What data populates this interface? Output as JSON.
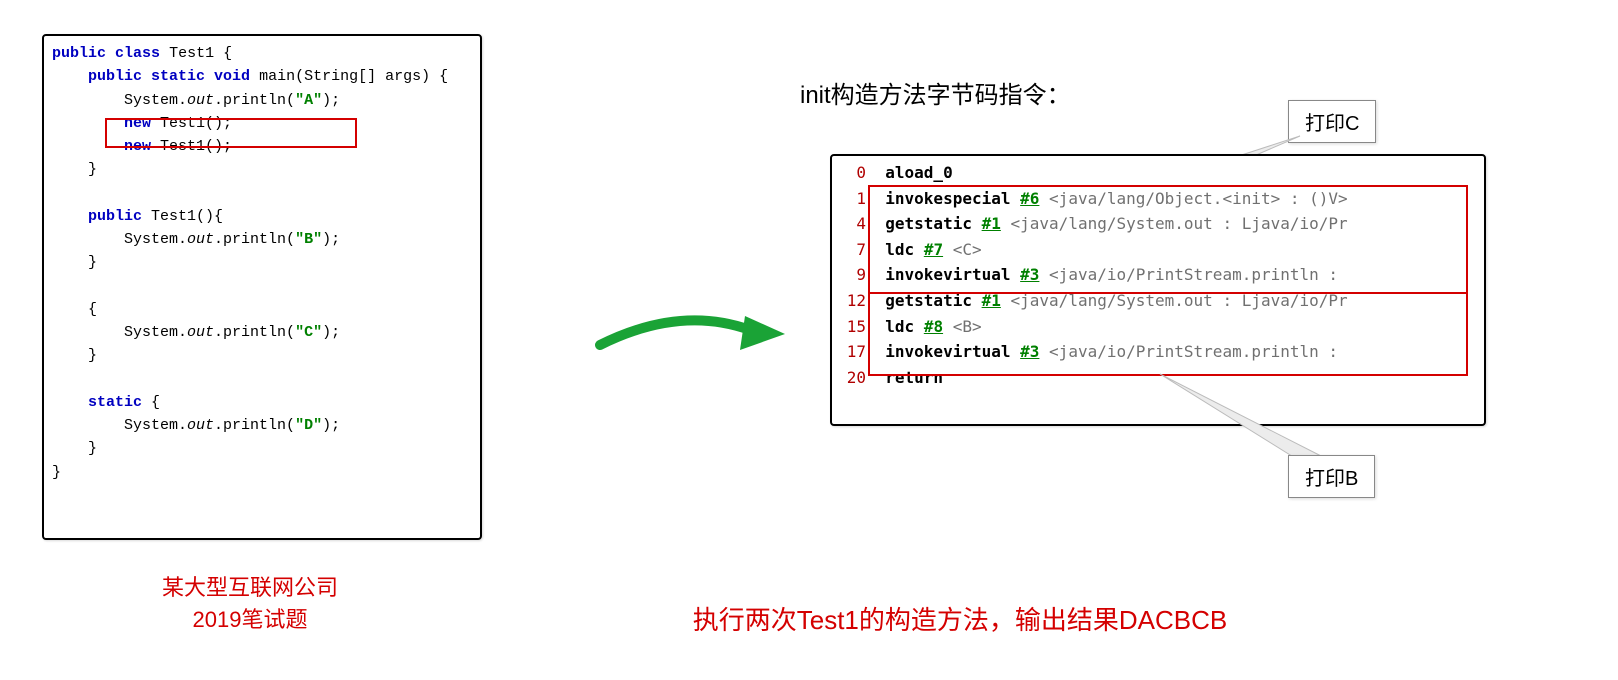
{
  "left_code": {
    "l01_kw1": "public",
    "l01_kw2": "class",
    "l01_cls": "Test1 {",
    "l02_kw": "public static void",
    "l02_sig": "main(String[] args) {",
    "l03a": "System.",
    "l03b": "out",
    "l03c": ".println(",
    "l03d": "\"A\"",
    "l03e": ");",
    "l04_kw": "new",
    "l04_rest": "Test1();",
    "l05_kw": "new",
    "l05_rest": "Test1();",
    "l06": "}",
    "l08_kw": "public",
    "l08_sig": "Test1(){",
    "l09a": "System.",
    "l09b": "out",
    "l09c": ".println(",
    "l09d": "\"B\"",
    "l09e": ");",
    "l10": "}",
    "l12": "{",
    "l13a": "System.",
    "l13b": "out",
    "l13c": ".println(",
    "l13d": "\"C\"",
    "l13e": ");",
    "l14": "}",
    "l16_kw": "static",
    "l16_rest": "{",
    "l17a": "System.",
    "l17b": "out",
    "l17c": ".println(",
    "l17d": "\"D\"",
    "l17e": ");",
    "l18": "}",
    "l19": "}",
    "highlight_box": {
      "border_color": "#d40000"
    }
  },
  "left_caption_line1": "某大型互联网公司",
  "left_caption_line2": "2019笔试题",
  "right_title": "init构造方法字节码指令：",
  "bytecode": [
    {
      "n": "0",
      "op": "aload_0",
      "ref": "",
      "txt": ""
    },
    {
      "n": "1",
      "op": "invokespecial",
      "ref": "#6",
      "txt": "<java/lang/Object.<init> : ()V>"
    },
    {
      "n": "4",
      "op": "getstatic",
      "ref": "#1",
      "txt": "<java/lang/System.out : Ljava/io/Pr"
    },
    {
      "n": "7",
      "op": "ldc",
      "ref": "#7",
      "txt": "<C>"
    },
    {
      "n": "9",
      "op": "invokevirtual",
      "ref": "#3",
      "txt": "<java/io/PrintStream.println :"
    },
    {
      "n": "12",
      "op": "getstatic",
      "ref": "#1",
      "txt": "<java/lang/System.out : Ljava/io/Pr"
    },
    {
      "n": "15",
      "op": "ldc",
      "ref": "#8",
      "txt": "<B>"
    },
    {
      "n": "17",
      "op": "invokevirtual",
      "ref": "#3",
      "txt": "<java/io/PrintStream.println :"
    },
    {
      "n": "20",
      "op": "return",
      "ref": "",
      "txt": ""
    }
  ],
  "bc_highlight1": {
    "top_row": 1,
    "bottom_row": 4
  },
  "bc_highlight2": {
    "top_row": 5,
    "bottom_row": 7
  },
  "callout1": "打印C",
  "callout2": "打印B",
  "right_caption": "执行两次Test1的构造方法，输出结果DACBCB",
  "arrow_color": "#1aa336",
  "colors": {
    "keyword": "#0000c0",
    "string": "#008000",
    "text": "#000000",
    "bc_num": "#b00000",
    "bc_ref": "#008000",
    "bc_txt": "#707070",
    "red": "#d40000",
    "border": "#000000",
    "callout_border": "#888888"
  }
}
